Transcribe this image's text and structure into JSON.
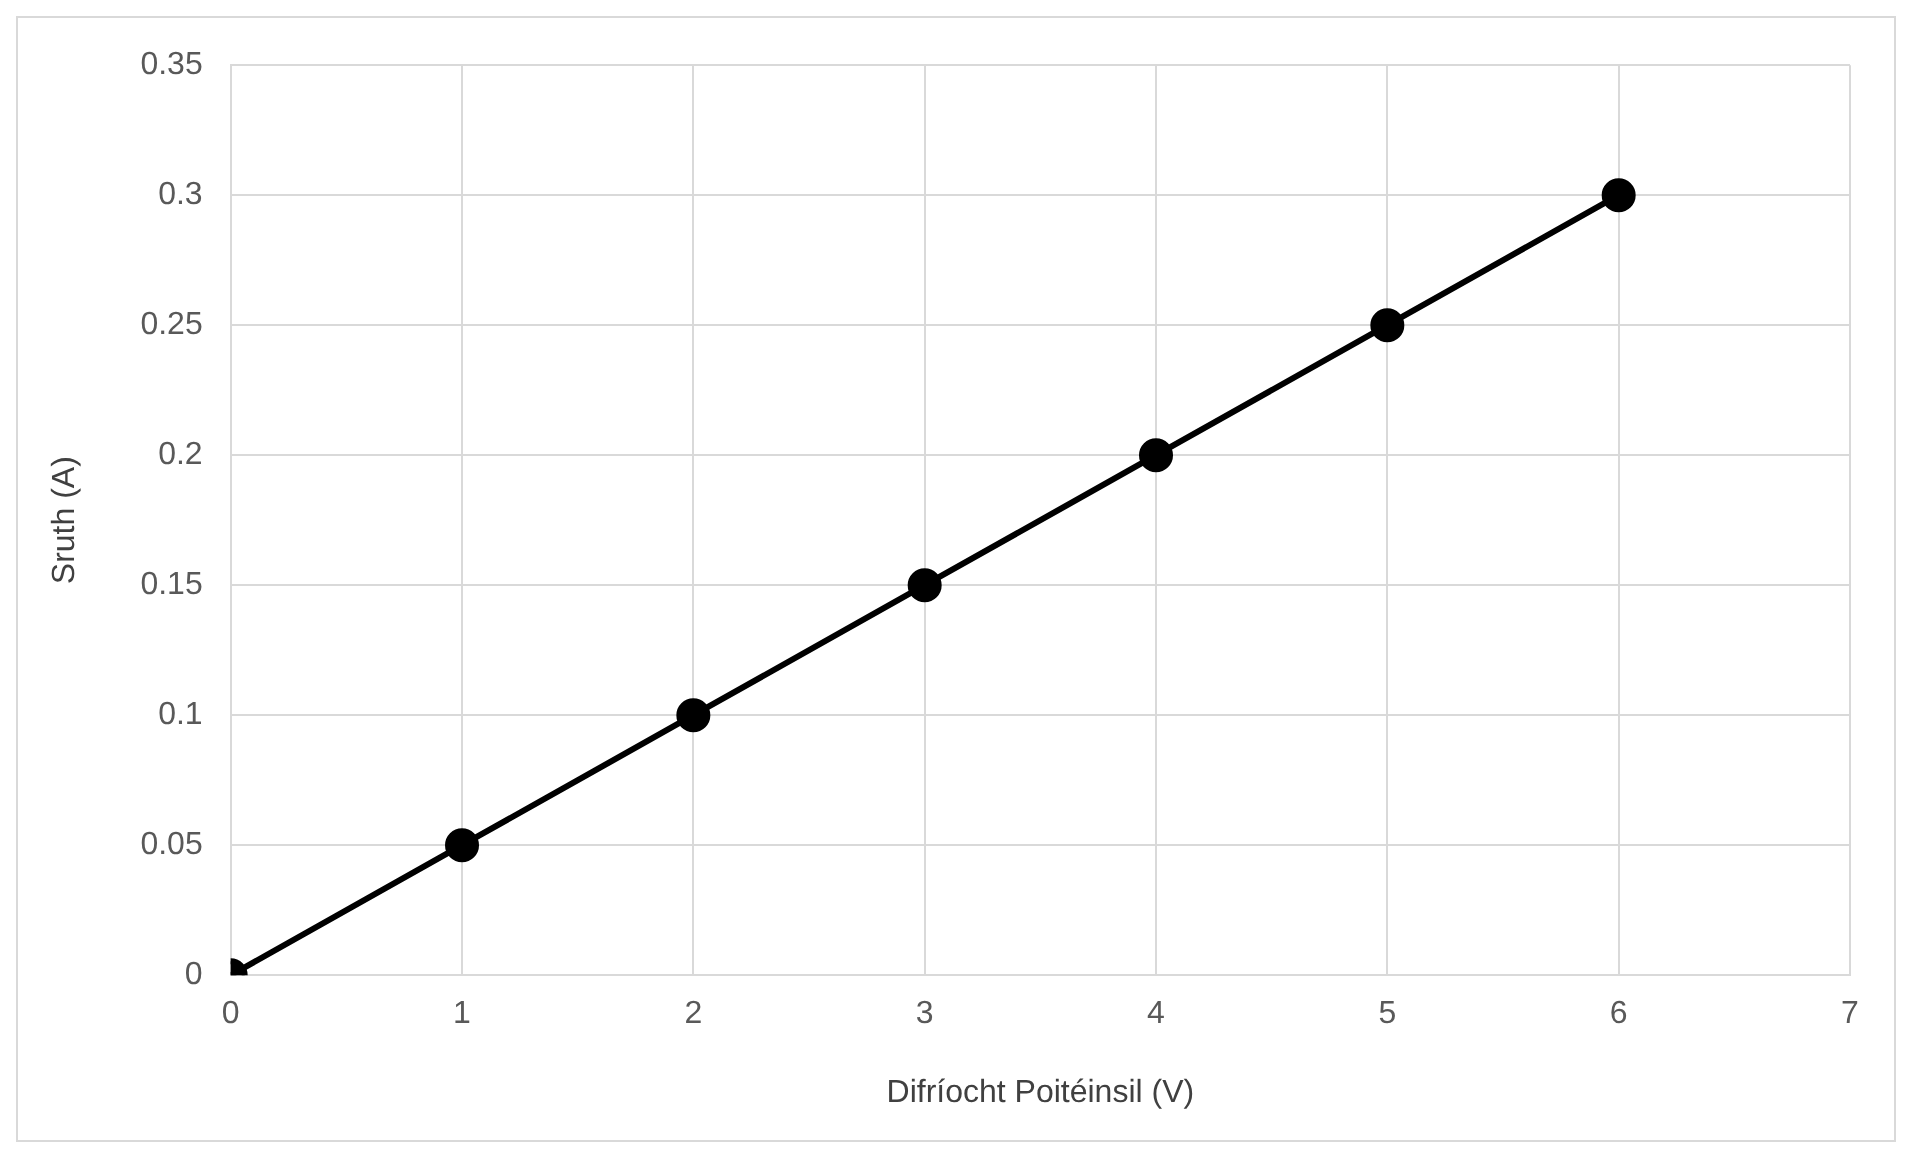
{
  "chart_data": {
    "type": "line",
    "xlabel": "Difríocht Poitéinsil (V)",
    "ylabel": "Sruth (A)",
    "x": [
      0,
      1,
      2,
      3,
      4,
      5,
      6
    ],
    "series": [
      {
        "color": "#000000",
        "values": [
          0,
          0.05,
          0.1,
          0.15,
          0.2,
          0.25,
          0.3
        ]
      }
    ],
    "xlim": [
      0,
      7
    ],
    "xticks": [
      0,
      1,
      2,
      3,
      4,
      5,
      6,
      7
    ],
    "ylim": [
      0,
      0.35
    ],
    "yticks": [
      0,
      0.05,
      0.1,
      0.15,
      0.2,
      0.25,
      0.3,
      0.35
    ],
    "grid": true,
    "legend": false,
    "marker": "circle",
    "line_style": "solid"
  }
}
